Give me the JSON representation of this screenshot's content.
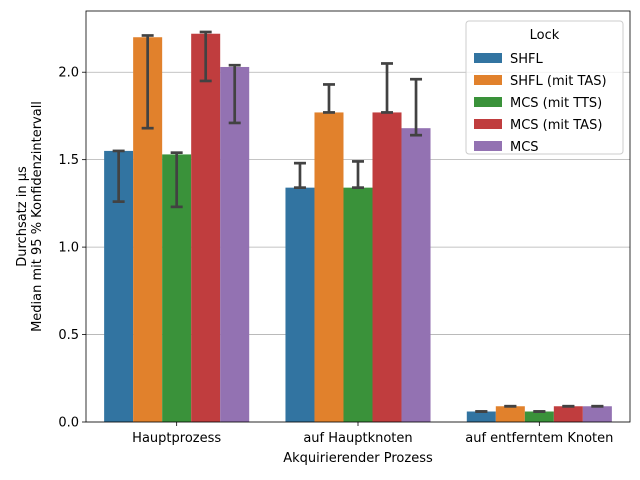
{
  "chart_data": {
    "type": "bar",
    "title": "",
    "xlabel": "Akquirierender Prozess",
    "ylabel_line1": "Durchsatz in µs",
    "ylabel_line2": "Median mit 95 % Konfidenzintervall",
    "ylim": [
      0,
      2.35
    ],
    "yticks": [
      "0.0",
      "0.5",
      "1.0",
      "1.5",
      "2.0"
    ],
    "grid": "horizontal",
    "legend_title": "Lock",
    "legend_position": "top-right",
    "categories": [
      "Hauptprozess",
      "auf Hauptknoten",
      "auf entferntem Knoten"
    ],
    "series": [
      {
        "name": "SHFL",
        "color": "#3274a1",
        "values": [
          1.55,
          1.34,
          0.06
        ],
        "ci": [
          [
            1.26,
            1.55
          ],
          [
            1.34,
            1.48
          ],
          [
            0.06,
            0.06
          ]
        ]
      },
      {
        "name": "SHFL (mit TAS)",
        "color": "#e1812c",
        "values": [
          2.2,
          1.77,
          0.09
        ],
        "ci": [
          [
            1.68,
            2.21
          ],
          [
            1.77,
            1.93
          ],
          [
            0.09,
            0.09
          ]
        ]
      },
      {
        "name": "MCS (mit TTS)",
        "color": "#3a923a",
        "values": [
          1.53,
          1.34,
          0.06
        ],
        "ci": [
          [
            1.23,
            1.54
          ],
          [
            1.34,
            1.49
          ],
          [
            0.06,
            0.06
          ]
        ]
      },
      {
        "name": "MCS (mit TAS)",
        "color": "#c03d3e",
        "values": [
          2.22,
          1.77,
          0.09
        ],
        "ci": [
          [
            1.95,
            2.23
          ],
          [
            1.77,
            2.05
          ],
          [
            0.09,
            0.09
          ]
        ]
      },
      {
        "name": "MCS",
        "color": "#9372b2",
        "values": [
          2.03,
          1.68,
          0.09
        ],
        "ci": [
          [
            1.71,
            2.04
          ],
          [
            1.64,
            1.96
          ],
          [
            0.09,
            0.09
          ]
        ]
      }
    ]
  }
}
